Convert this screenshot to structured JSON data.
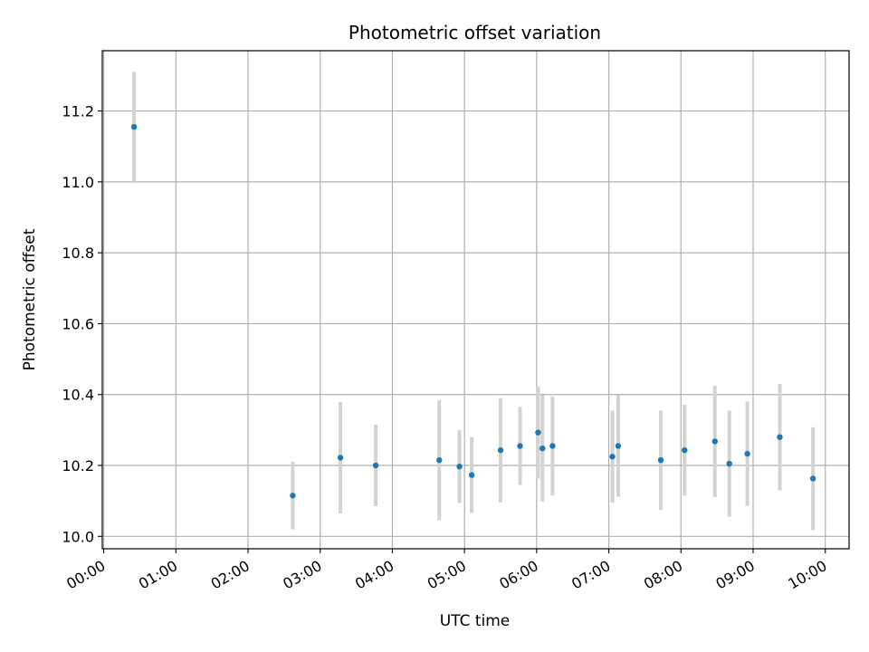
{
  "chart_data": {
    "type": "scatter",
    "title": "Photometric offset variation",
    "xlabel": "UTC time",
    "ylabel": "Photometric offset",
    "x_unit": "hours UTC",
    "xlim": [
      -0.02,
      10.33
    ],
    "ylim": [
      9.965,
      11.37
    ],
    "x_ticks": [
      {
        "value": 0,
        "label": "00:00"
      },
      {
        "value": 1,
        "label": "01:00"
      },
      {
        "value": 2,
        "label": "02:00"
      },
      {
        "value": 3,
        "label": "03:00"
      },
      {
        "value": 4,
        "label": "04:00"
      },
      {
        "value": 5,
        "label": "05:00"
      },
      {
        "value": 6,
        "label": "06:00"
      },
      {
        "value": 7,
        "label": "07:00"
      },
      {
        "value": 8,
        "label": "08:00"
      },
      {
        "value": 9,
        "label": "09:00"
      },
      {
        "value": 10,
        "label": "10:00"
      }
    ],
    "y_ticks": [
      {
        "value": 10.0,
        "label": "10.0"
      },
      {
        "value": 10.2,
        "label": "10.2"
      },
      {
        "value": 10.4,
        "label": "10.4"
      },
      {
        "value": 10.6,
        "label": "10.6"
      },
      {
        "value": 10.8,
        "label": "10.8"
      },
      {
        "value": 11.0,
        "label": "11.0"
      },
      {
        "value": 11.2,
        "label": "11.2"
      }
    ],
    "grid": true,
    "point_color": "#1f77b4",
    "errorbar_color": "#d3d3d3",
    "points": [
      {
        "x": 0.42,
        "y": 11.155,
        "yerr": 0.155
      },
      {
        "x": 2.62,
        "y": 10.115,
        "yerr": 0.095
      },
      {
        "x": 3.28,
        "y": 10.222,
        "yerr": 0.157
      },
      {
        "x": 3.77,
        "y": 10.2,
        "yerr": 0.115
      },
      {
        "x": 4.65,
        "y": 10.215,
        "yerr": 0.17
      },
      {
        "x": 4.93,
        "y": 10.197,
        "yerr": 0.103
      },
      {
        "x": 5.1,
        "y": 10.173,
        "yerr": 0.107
      },
      {
        "x": 5.5,
        "y": 10.243,
        "yerr": 0.147
      },
      {
        "x": 5.77,
        "y": 10.255,
        "yerr": 0.11
      },
      {
        "x": 6.02,
        "y": 10.293,
        "yerr": 0.13
      },
      {
        "x": 6.08,
        "y": 10.248,
        "yerr": 0.15
      },
      {
        "x": 6.22,
        "y": 10.255,
        "yerr": 0.14
      },
      {
        "x": 7.05,
        "y": 10.225,
        "yerr": 0.13
      },
      {
        "x": 7.13,
        "y": 10.255,
        "yerr": 0.143
      },
      {
        "x": 7.72,
        "y": 10.215,
        "yerr": 0.14
      },
      {
        "x": 8.05,
        "y": 10.243,
        "yerr": 0.128
      },
      {
        "x": 8.47,
        "y": 10.268,
        "yerr": 0.157
      },
      {
        "x": 8.67,
        "y": 10.205,
        "yerr": 0.15
      },
      {
        "x": 8.92,
        "y": 10.233,
        "yerr": 0.147
      },
      {
        "x": 9.37,
        "y": 10.28,
        "yerr": 0.15
      },
      {
        "x": 9.83,
        "y": 10.163,
        "yerr": 0.145
      }
    ]
  }
}
